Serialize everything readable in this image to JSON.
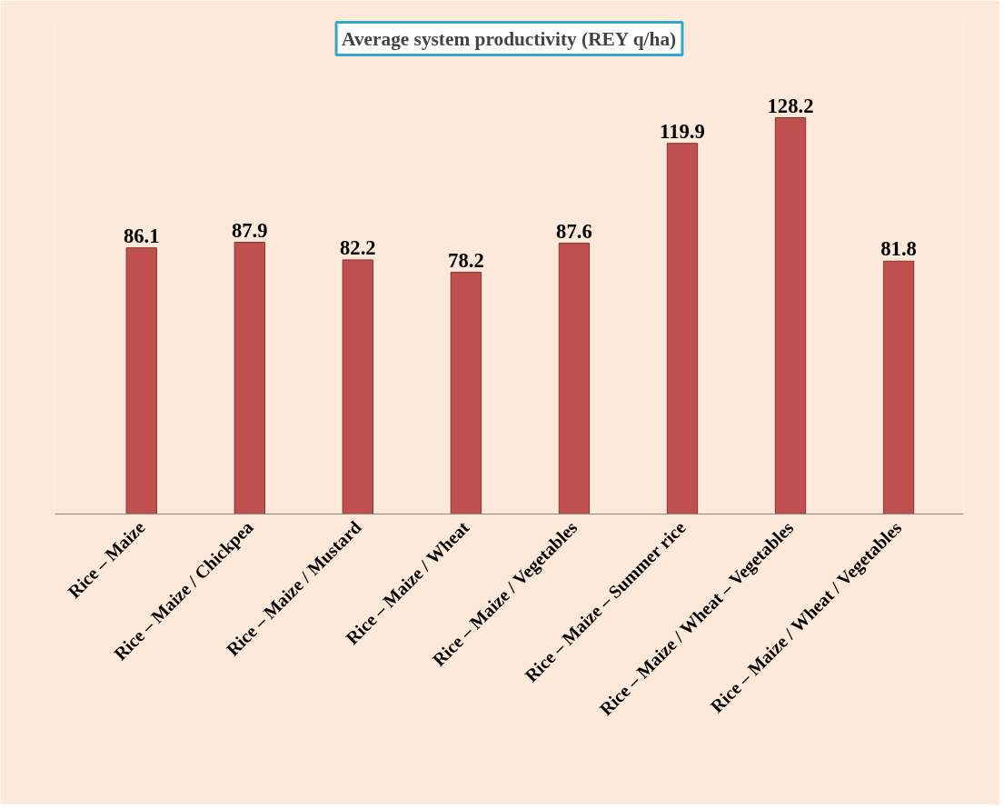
{
  "chart_data": {
    "type": "bar",
    "title": "Average system productivity (REY q/ha)",
    "categories": [
      "Rice – Maize",
      "Rice – Maize / Chickpea",
      "Rice – Maize / Mustard",
      "Rice – Maize / Wheat",
      "Rice – Maize / Vegetables",
      "Rice – Maize – Summer rice",
      "Rice – Maize / Wheat – Vegetables",
      "Rice – Maize / Wheat / Vegetables"
    ],
    "values": [
      86.1,
      87.9,
      82.2,
      78.2,
      87.6,
      119.9,
      128.2,
      81.8
    ],
    "color": "#c0504d",
    "data_labels": true
  }
}
